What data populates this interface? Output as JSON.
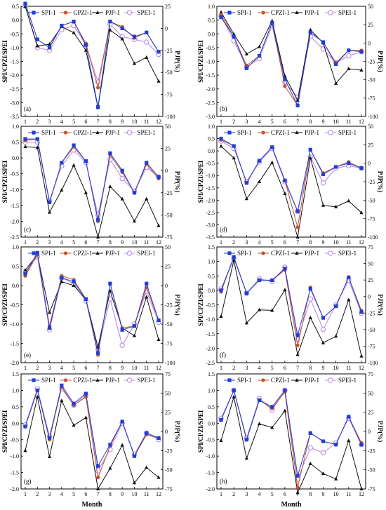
{
  "figure": {
    "xlabel": "Month",
    "legend": [
      "SPI-1",
      "CPZI-1",
      "PJP-1",
      "SPEI-1"
    ],
    "colors": {
      "SPI-1": "#1f3fd6",
      "CPZI-1": "#c8522a",
      "PJP-1": "#111111",
      "SPEI-1": "#b98ee8"
    }
  },
  "chart_data": [
    {
      "type": "line",
      "panel": "(a)",
      "categories": [
        "1",
        "2",
        "3",
        "4",
        "5",
        "6",
        "7",
        "8",
        "9",
        "10",
        "11",
        "12"
      ],
      "ylabel": "SPI/CPZI/SPEI",
      "y2label": "PJP(%)",
      "ylim": [
        -3.5,
        0.5
      ],
      "yticks": [
        0.5,
        0.0,
        -0.5,
        -1.0,
        -1.5,
        -2.0,
        -2.5,
        -3.0,
        -3.5
      ],
      "y2lim": [
        -100,
        25
      ],
      "y2ticks": [
        25,
        0,
        -25,
        -50,
        -75,
        -100
      ],
      "series": [
        {
          "name": "SPI-1",
          "axis": "left",
          "values": [
            0.6,
            -0.7,
            -1.0,
            -0.2,
            -0.05,
            -0.9,
            -3.15,
            -0.05,
            -0.3,
            -0.6,
            -0.45,
            -1.15
          ]
        },
        {
          "name": "CPZI-1",
          "axis": "left",
          "values": [
            0.6,
            -0.7,
            -1.0,
            -0.2,
            -0.05,
            -0.85,
            -2.45,
            -0.05,
            -0.25,
            -0.65,
            -0.45,
            -1.15
          ]
        },
        {
          "name": "PJP-1",
          "axis": "right",
          "values": [
            25,
            -20,
            -18,
            2,
            -5,
            -25,
            -90,
            -2,
            -12,
            -40,
            -33,
            -60
          ]
        },
        {
          "name": "SPEI-1",
          "axis": "left",
          "values": [
            0.5,
            -1.0,
            -1.1,
            -0.35,
            -0.2,
            -0.9,
            -2.25,
            -0.15,
            -0.6,
            -0.7,
            -0.8,
            -1.25
          ]
        }
      ]
    },
    {
      "type": "line",
      "panel": "(b)",
      "categories": [
        "1",
        "2",
        "3",
        "4",
        "5",
        "6",
        "7",
        "8",
        "9",
        "10",
        "11",
        "12"
      ],
      "ylabel": "SPI/CPZI/SPEI",
      "y2label": "PJP(%)",
      "ylim": [
        -3.0,
        1.0
      ],
      "yticks": [
        1.0,
        0.5,
        0.0,
        -0.5,
        -1.0,
        -1.5,
        -2.0,
        -2.5,
        -3.0
      ],
      "y2lim": [
        -100,
        50
      ],
      "y2ticks": [
        50,
        25,
        0,
        -25,
        -50,
        -75,
        -100
      ],
      "series": [
        {
          "name": "SPI-1",
          "axis": "left",
          "values": [
            0.6,
            -0.1,
            -1.25,
            -0.8,
            0.4,
            -1.65,
            -2.6,
            0.05,
            -0.3,
            -1.1,
            -0.6,
            -0.65
          ]
        },
        {
          "name": "CPZI-1",
          "axis": "left",
          "values": [
            0.7,
            -0.1,
            -1.15,
            -0.8,
            0.4,
            -1.9,
            -2.6,
            0.05,
            -0.3,
            -1.05,
            -0.6,
            -0.6
          ]
        },
        {
          "name": "PJP-1",
          "axis": "right",
          "values": [
            42,
            12,
            -15,
            -5,
            30,
            -45,
            -78,
            18,
            0,
            -55,
            -35,
            -37
          ]
        },
        {
          "name": "SPEI-1",
          "axis": "left",
          "values": [
            0.65,
            -0.25,
            -1.2,
            -0.9,
            0.3,
            -1.75,
            -2.3,
            -0.1,
            -0.55,
            -1.05,
            -0.8,
            -0.65
          ]
        }
      ]
    },
    {
      "type": "line",
      "panel": "(c)",
      "categories": [
        "1",
        "2",
        "3",
        "4",
        "5",
        "6",
        "7",
        "8",
        "9",
        "10",
        "11",
        "12"
      ],
      "ylabel": "SPI/CPZI/SPEI",
      "y2label": "PJP(%)",
      "ylim": [
        -2.5,
        1.0
      ],
      "yticks": [
        1.0,
        0.5,
        0.0,
        -0.5,
        -1.0,
        -1.5,
        -2.0,
        -2.5
      ],
      "y2lim": [
        -75,
        50
      ],
      "y2ticks": [
        50,
        25,
        0,
        -25,
        -50,
        -75
      ],
      "series": [
        {
          "name": "SPI-1",
          "axis": "left",
          "values": [
            0.6,
            0.6,
            -1.4,
            -0.15,
            0.4,
            -0.1,
            -1.95,
            0.15,
            -0.4,
            -1.1,
            -0.15,
            -0.6
          ]
        },
        {
          "name": "CPZI-1",
          "axis": "left",
          "values": [
            0.55,
            0.6,
            -1.4,
            -0.15,
            0.35,
            -0.1,
            -2.0,
            0.1,
            -0.45,
            -1.1,
            -0.2,
            -0.65
          ]
        },
        {
          "name": "PJP-1",
          "axis": "right",
          "values": [
            27,
            26,
            -47,
            -22,
            6,
            -25,
            -75,
            -18,
            -32,
            -57,
            -32,
            -62
          ]
        },
        {
          "name": "SPEI-1",
          "axis": "left",
          "values": [
            0.5,
            0.5,
            -1.35,
            -0.25,
            0.25,
            -0.15,
            -1.8,
            -0.05,
            -0.65,
            -1.05,
            -0.3,
            -0.6
          ]
        }
      ]
    },
    {
      "type": "line",
      "panel": "(d)",
      "categories": [
        "1",
        "2",
        "3",
        "4",
        "5",
        "6",
        "7",
        "8",
        "9",
        "10",
        "11",
        "12"
      ],
      "ylabel": "SPI/CPZI/SPEI",
      "y2label": "PJP(%)",
      "ylim": [
        -3.5,
        1.0
      ],
      "yticks": [
        1.0,
        0.5,
        0.0,
        -0.5,
        -1.0,
        -1.5,
        -2.0,
        -2.5,
        -3.0,
        -3.5
      ],
      "y2lim": [
        -100,
        50
      ],
      "y2ticks": [
        50,
        25,
        0,
        -25,
        -50,
        -75,
        -100
      ],
      "series": [
        {
          "name": "SPI-1",
          "axis": "left",
          "values": [
            0.5,
            0.2,
            -1.3,
            -0.4,
            0.15,
            -1.2,
            -2.45,
            0.05,
            -0.95,
            -0.65,
            -0.5,
            -0.7
          ]
        },
        {
          "name": "CPZI-1",
          "axis": "left",
          "values": [
            0.45,
            0.2,
            -1.3,
            -0.4,
            0.15,
            -1.2,
            -3.1,
            0.05,
            -0.9,
            -0.65,
            -0.45,
            -0.7
          ]
        },
        {
          "name": "PJP-1",
          "axis": "right",
          "values": [
            23,
            7,
            -48,
            -25,
            1,
            -41,
            -100,
            7,
            -57,
            -59,
            -51,
            -67
          ]
        },
        {
          "name": "SPEI-1",
          "axis": "left",
          "values": [
            0.4,
            0.1,
            -1.25,
            -0.45,
            0.1,
            -1.25,
            -2.45,
            -0.25,
            -1.3,
            -0.7,
            -0.6,
            -0.7
          ]
        }
      ]
    },
    {
      "type": "line",
      "panel": "(e)",
      "categories": [
        "1",
        "2",
        "3",
        "4",
        "5",
        "6",
        "7",
        "8",
        "9",
        "10",
        "11",
        "12"
      ],
      "ylabel": "SPI/CPZI/SPEI",
      "y2label": "PJP(%)",
      "ylim": [
        -2.0,
        1.0
      ],
      "yticks": [
        1.0,
        0.5,
        0.0,
        -0.5,
        -1.0,
        -1.5,
        -2.0
      ],
      "y2lim": [
        -100,
        50
      ],
      "y2ticks": [
        50,
        25,
        0,
        -25,
        -50,
        -75,
        -100
      ],
      "series": [
        {
          "name": "SPI-1",
          "axis": "left",
          "values": [
            0.3,
            0.85,
            -1.1,
            0.2,
            0.1,
            -0.35,
            -1.75,
            0.05,
            -1.15,
            -1.05,
            0.05,
            -0.9
          ]
        },
        {
          "name": "CPZI-1",
          "axis": "left",
          "values": [
            0.25,
            0.8,
            -1.05,
            0.25,
            0.15,
            -0.35,
            -1.8,
            0.05,
            -1.1,
            -1.05,
            -0.05,
            -0.9
          ]
        },
        {
          "name": "PJP-1",
          "axis": "right",
          "values": [
            20,
            40,
            -35,
            5,
            0,
            -18,
            -80,
            -7,
            -55,
            -65,
            -15,
            -70
          ]
        },
        {
          "name": "SPEI-1",
          "axis": "left",
          "values": [
            0.35,
            0.75,
            -1.15,
            0.2,
            0.05,
            -0.4,
            -1.65,
            -0.35,
            -1.55,
            -1.0,
            -0.15,
            -0.95
          ]
        }
      ]
    },
    {
      "type": "line",
      "panel": "(f)",
      "categories": [
        "1",
        "2",
        "3",
        "4",
        "5",
        "6",
        "7",
        "8",
        "9",
        "10",
        "11",
        "12"
      ],
      "ylabel": "SPI/CPZI/SPEI",
      "y2label": "PJP(%)",
      "ylim": [
        -2.5,
        1.5
      ],
      "yticks": [
        1.5,
        1.0,
        0.5,
        0.0,
        -0.5,
        -1.0,
        -1.5,
        -2.0,
        -2.5
      ],
      "y2lim": [
        -100,
        75
      ],
      "y2ticks": [
        75,
        50,
        25,
        0,
        -25,
        -50,
        -75,
        -100
      ],
      "series": [
        {
          "name": "SPI-1",
          "axis": "left",
          "values": [
            0.0,
            1.15,
            -0.1,
            0.35,
            0.35,
            0.75,
            -1.55,
            0.05,
            -0.95,
            -0.55,
            0.45,
            -0.75
          ]
        },
        {
          "name": "CPZI-1",
          "axis": "left",
          "values": [
            -0.05,
            1.15,
            -0.1,
            0.35,
            0.35,
            0.7,
            -1.9,
            0.1,
            -0.95,
            -0.55,
            0.45,
            -0.7
          ]
        },
        {
          "name": "PJP-1",
          "axis": "right",
          "values": [
            -30,
            55,
            -40,
            -20,
            -21,
            10,
            -88,
            -32,
            -70,
            -60,
            -5,
            -90
          ]
        },
        {
          "name": "SPEI-1",
          "axis": "left",
          "values": [
            0.05,
            1.1,
            -0.1,
            0.4,
            0.3,
            0.8,
            -1.7,
            -0.3,
            -1.35,
            -0.5,
            0.35,
            -0.8
          ]
        }
      ]
    },
    {
      "type": "line",
      "panel": "(g)",
      "categories": [
        "1",
        "2",
        "3",
        "4",
        "5",
        "6",
        "7",
        "8",
        "9",
        "10",
        "11",
        "12"
      ],
      "ylabel": "SPI/CPZI/SPEI",
      "y2label": "PJP(%)",
      "ylim": [
        -2.0,
        1.5
      ],
      "yticks": [
        1.5,
        1.0,
        0.5,
        0.0,
        -0.5,
        -1.0,
        -1.5,
        -2.0
      ],
      "y2lim": [
        -75,
        75
      ],
      "y2ticks": [
        75,
        50,
        25,
        0,
        -25,
        -50,
        -75
      ],
      "series": [
        {
          "name": "SPI-1",
          "axis": "left",
          "values": [
            -0.1,
            1.0,
            -0.45,
            1.15,
            0.6,
            0.9,
            -1.3,
            -0.65,
            0.05,
            -1.0,
            -0.3,
            -0.45
          ]
        },
        {
          "name": "CPZI-1",
          "axis": "left",
          "values": [
            -0.1,
            1.0,
            -0.5,
            1.1,
            0.55,
            0.8,
            -1.65,
            -0.7,
            0.05,
            -1.0,
            -0.35,
            -0.45
          ]
        },
        {
          "name": "PJP-1",
          "axis": "right",
          "values": [
            -25,
            45,
            -33,
            40,
            8,
            18,
            -75,
            -48,
            -18,
            -67,
            -47,
            -60
          ]
        },
        {
          "name": "SPEI-1",
          "axis": "left",
          "values": [
            -0.05,
            1.05,
            -0.4,
            1.05,
            0.55,
            0.85,
            -1.45,
            -0.8,
            0.0,
            -0.95,
            -0.3,
            -0.5
          ]
        }
      ]
    },
    {
      "type": "line",
      "panel": "(h)",
      "categories": [
        "1",
        "2",
        "3",
        "4",
        "5",
        "6",
        "7",
        "8",
        "9",
        "10",
        "11",
        "12"
      ],
      "ylabel": "SPI/CPZI/SPEI",
      "y2label": "PJP(%)",
      "ylim": [
        -2.0,
        1.5
      ],
      "yticks": [
        1.5,
        1.0,
        0.5,
        0.0,
        -0.5,
        -1.0,
        -1.5,
        -2.0
      ],
      "y2lim": [
        -75,
        75
      ],
      "y2ticks": [
        75,
        50,
        25,
        0,
        -25,
        -50,
        -75
      ],
      "series": [
        {
          "name": "SPI-1",
          "axis": "left",
          "values": [
            0.1,
            1.0,
            -0.5,
            0.7,
            0.5,
            1.0,
            -1.6,
            -0.3,
            -0.55,
            -0.65,
            0.2,
            -0.65
          ]
        },
        {
          "name": "CPZI-1",
          "axis": "left",
          "values": [
            0.1,
            1.0,
            -0.5,
            0.7,
            0.45,
            0.95,
            -1.95,
            -0.3,
            -0.55,
            -0.65,
            0.2,
            -0.6
          ]
        },
        {
          "name": "PJP-1",
          "axis": "right",
          "values": [
            -12,
            45,
            -35,
            10,
            5,
            27,
            -80,
            -42,
            -55,
            -62,
            -12,
            -75
          ]
        },
        {
          "name": "SPEI-1",
          "axis": "left",
          "values": [
            0.15,
            1.0,
            -0.45,
            0.75,
            0.4,
            1.0,
            -1.7,
            -0.75,
            -0.9,
            -0.6,
            0.15,
            -0.65
          ]
        }
      ]
    }
  ]
}
